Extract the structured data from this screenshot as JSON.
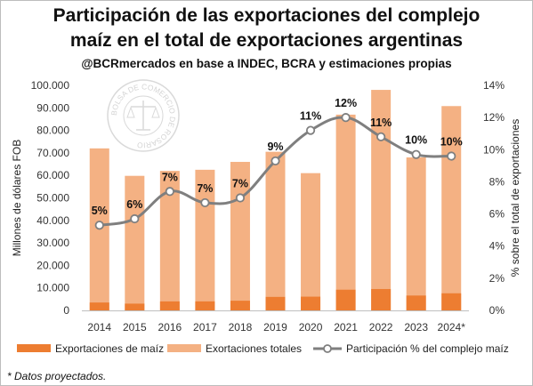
{
  "header": {
    "title_line1": "Participación de las exportaciones del complejo",
    "title_line2": "maíz en el total de exportaciones argentinas",
    "subtitle": "@BCRmercados en base a INDEC, BCRA y estimaciones propias"
  },
  "watermark": {
    "text": "BOLSA DE COMERCIO DE ROSARIO",
    "icon": "scales-of-justice-seal-icon"
  },
  "footnote": "* Datos proyectados.",
  "colors": {
    "corn_exports": "#ed7d31",
    "total_exports": "#f4b183",
    "share_line": "#7f7f7f",
    "share_marker_fill": "#ffffff"
  },
  "chart_data": {
    "type": "bar",
    "categories": [
      "2014",
      "2015",
      "2016",
      "2017",
      "2018",
      "2019",
      "2020",
      "2021",
      "2022",
      "2023",
      "2024*"
    ],
    "series": [
      {
        "name": "Exportaciones de maíz",
        "type": "bar",
        "axis": "left",
        "values": [
          3500,
          3000,
          4000,
          4000,
          4300,
          6000,
          6100,
          9200,
          9500,
          6600,
          7600
        ]
      },
      {
        "name": "Exortaciones totales",
        "type": "bar",
        "axis": "left",
        "values": [
          72000,
          59800,
          62000,
          62500,
          66000,
          70500,
          61000,
          87000,
          98000,
          68000,
          90800
        ]
      },
      {
        "name": "Participación % del complejo maíz",
        "type": "line",
        "axis": "right",
        "values": [
          5.3,
          5.7,
          7.4,
          6.7,
          7.0,
          9.3,
          11.2,
          12.0,
          10.8,
          9.7,
          9.6
        ],
        "data_labels": [
          "5%",
          "6%",
          "7%",
          "7%",
          "7%",
          "9%",
          "11%",
          "12%",
          "11%",
          "10%",
          "10%"
        ]
      }
    ],
    "ylabel": "Millones de dólares FOB",
    "y2label": "% sobre el total de exportaciones",
    "ylim": [
      0,
      100000
    ],
    "y2lim": [
      0,
      14
    ],
    "yticks": [
      "0",
      "10.000",
      "20.000",
      "30.000",
      "40.000",
      "50.000",
      "60.000",
      "70.000",
      "80.000",
      "90.000",
      "100.000"
    ],
    "y2ticks": [
      "0%",
      "2%",
      "4%",
      "6%",
      "8%",
      "10%",
      "12%",
      "14%"
    ],
    "grid": false,
    "legend_position": "bottom"
  }
}
